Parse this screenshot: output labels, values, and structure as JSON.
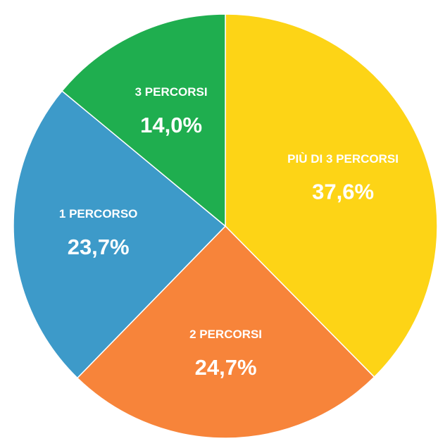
{
  "chart_data": {
    "type": "pie",
    "categories": [
      "PIÙ DI 3 PERCORSI",
      "2 PERCORSI",
      "1 PERCORSO",
      "3 PERCORSI"
    ],
    "values": [
      37.6,
      24.7,
      23.7,
      14.0
    ],
    "value_labels": [
      "37,6%",
      "24,7%",
      "23,7%",
      "14,0%"
    ],
    "colors": [
      "#fdd416",
      "#f7843a",
      "#3d9ac9",
      "#1fae4f"
    ]
  }
}
